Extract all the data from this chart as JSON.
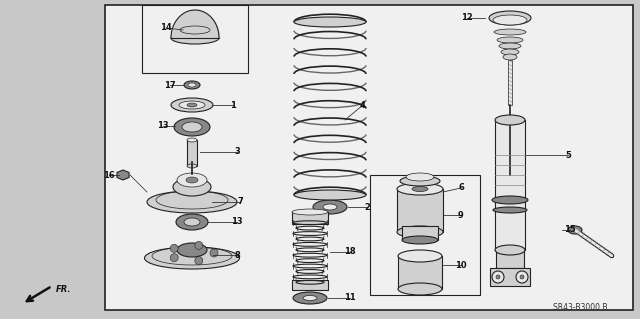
{
  "background_color": "#c8c8c8",
  "border_color": "#222222",
  "ref_code": "SR43-B3000 B",
  "white_bg": "#f0f0f0",
  "spring_color": "#444444",
  "part_fill": "#d0d0d0",
  "part_edge": "#222222",
  "part_dark": "#888888",
  "part_light": "#e8e8e8"
}
